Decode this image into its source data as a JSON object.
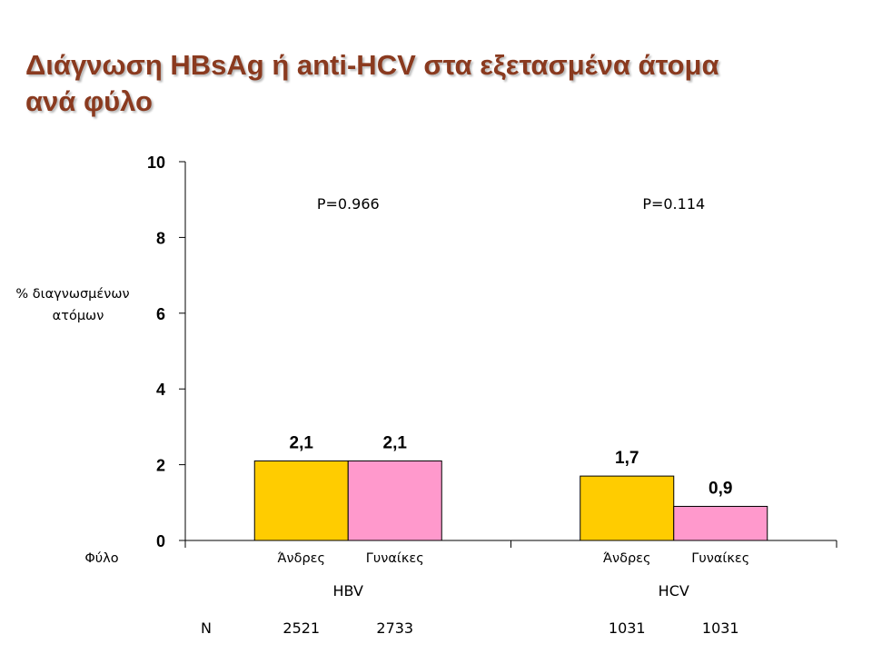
{
  "title": {
    "line1": "Διάγνωση HBsAg ή anti-HCV στα εξετασμένα άτομα",
    "line2": "ανά φύλο"
  },
  "colors": {
    "title": "#8a3a1f",
    "men": "#ffcc00",
    "women": "#ff99cc"
  },
  "chart_data": {
    "type": "bar",
    "ylim": [
      0,
      10
    ],
    "yticks": [
      "0",
      "2",
      "4",
      "6",
      "8",
      "10"
    ],
    "ylabel_line1": "% διαγνωσμένων",
    "ylabel_line2": "ατόμων",
    "xlabel": "Φύλο",
    "groups": [
      {
        "name": "HBV",
        "p_value": "P=0.966",
        "bars": [
          {
            "category": "Άνδρες",
            "value": 2.1,
            "label": "2,1",
            "n": "2521",
            "color": "#ffcc00"
          },
          {
            "category": "Γυναίκες",
            "value": 2.1,
            "label": "2,1",
            "n": "2733",
            "color": "#ff99cc"
          }
        ]
      },
      {
        "name": "HCV",
        "p_value": "P=0.114",
        "bars": [
          {
            "category": "Άνδρες",
            "value": 1.7,
            "label": "1,7",
            "n": "1031",
            "color": "#ffcc00"
          },
          {
            "category": "Γυναίκες",
            "value": 0.9,
            "label": "0,9",
            "n": "1031",
            "color": "#ff99cc"
          }
        ]
      }
    ],
    "n_label": "N"
  }
}
